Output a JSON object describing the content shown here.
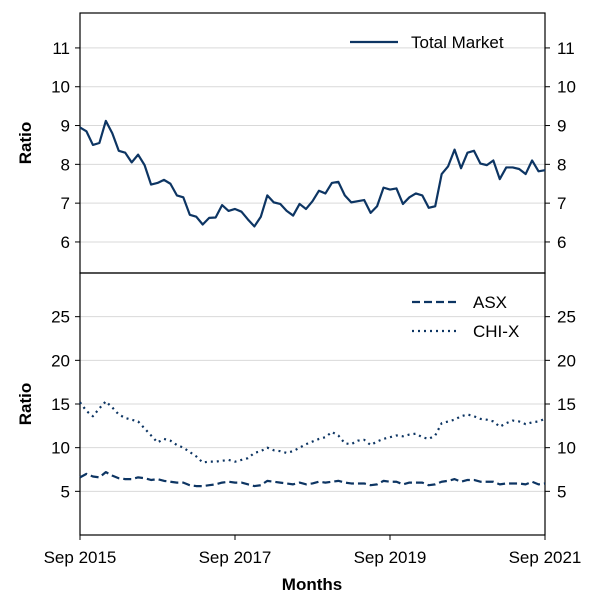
{
  "colors": {
    "series": "#0d3563",
    "grid": "#d9d9d9",
    "axis": "#000000"
  },
  "chart_data": [
    {
      "type": "line",
      "panel": "top",
      "xlabel": "",
      "ylabel": "Ratio",
      "ylim": [
        5.2,
        11.9
      ],
      "yticks": [
        6,
        7,
        8,
        9,
        10,
        11
      ],
      "grid": "horizontal",
      "legend": "top-right",
      "x": {
        "start": "Sep 2015",
        "end": "Sep 2021",
        "step": "month"
      },
      "series": [
        {
          "name": "Total Market",
          "style": "solid",
          "values": [
            8.95,
            8.85,
            8.5,
            8.55,
            9.12,
            8.8,
            8.35,
            8.3,
            8.05,
            8.25,
            7.98,
            7.48,
            7.52,
            7.6,
            7.5,
            7.2,
            7.15,
            6.7,
            6.65,
            6.45,
            6.62,
            6.63,
            6.95,
            6.8,
            6.85,
            6.78,
            6.58,
            6.4,
            6.65,
            7.2,
            7.02,
            6.98,
            6.8,
            6.68,
            6.98,
            6.85,
            7.05,
            7.32,
            7.25,
            7.52,
            7.55,
            7.2,
            7.02,
            7.05,
            7.08,
            6.75,
            6.92,
            7.4,
            7.35,
            7.38,
            6.98,
            7.15,
            7.25,
            7.2,
            6.88,
            6.92,
            7.75,
            7.95,
            8.38,
            7.9,
            8.3,
            8.35,
            8.02,
            7.98,
            8.1,
            7.62,
            7.92,
            7.92,
            7.88,
            7.75,
            8.1,
            7.82,
            7.85
          ]
        }
      ]
    },
    {
      "type": "line",
      "panel": "bottom",
      "xlabel": "Months",
      "ylabel": "Ratio",
      "ylim": [
        0,
        30
      ],
      "yticks": [
        5,
        10,
        15,
        20,
        25
      ],
      "xticks": [
        "Sep 2015",
        "Sep 2017",
        "Sep 2019",
        "Sep 2021"
      ],
      "grid": "horizontal",
      "legend": "top-right",
      "x": {
        "start": "Sep 2015",
        "end": "Sep 2021",
        "step": "month"
      },
      "series": [
        {
          "name": "ASX",
          "style": "dashed",
          "values": [
            6.6,
            7.0,
            6.7,
            6.6,
            7.2,
            6.8,
            6.5,
            6.4,
            6.4,
            6.6,
            6.5,
            6.3,
            6.4,
            6.2,
            6.1,
            6.0,
            6.0,
            5.7,
            5.6,
            5.6,
            5.7,
            5.8,
            6.0,
            6.1,
            6.0,
            6.0,
            5.8,
            5.6,
            5.7,
            6.2,
            6.1,
            6.0,
            5.9,
            5.8,
            6.0,
            5.8,
            5.9,
            6.1,
            6.0,
            6.1,
            6.2,
            6.0,
            5.9,
            5.9,
            5.9,
            5.7,
            5.8,
            6.2,
            6.1,
            6.1,
            5.8,
            6.0,
            6.0,
            6.0,
            5.7,
            5.8,
            6.1,
            6.2,
            6.4,
            6.1,
            6.3,
            6.3,
            6.1,
            6.1,
            6.1,
            5.8,
            5.9,
            5.9,
            5.9,
            5.8,
            6.1,
            5.8,
            5.9
          ]
        },
        {
          "name": "CHI-X",
          "style": "dotted",
          "values": [
            15.2,
            14.2,
            13.6,
            14.5,
            15.3,
            14.6,
            13.8,
            13.4,
            13.2,
            13.0,
            12.2,
            11.4,
            10.6,
            11.0,
            10.8,
            10.3,
            10.0,
            9.5,
            9.0,
            8.3,
            8.4,
            8.4,
            8.5,
            8.6,
            8.4,
            8.6,
            8.8,
            9.4,
            9.6,
            10.0,
            9.7,
            9.6,
            9.4,
            9.6,
            10.0,
            10.4,
            10.7,
            11.0,
            11.2,
            11.8,
            11.4,
            10.5,
            10.4,
            10.8,
            10.9,
            10.3,
            10.7,
            11.0,
            11.2,
            11.4,
            11.3,
            11.5,
            11.6,
            11.2,
            11.0,
            11.4,
            12.8,
            13.0,
            13.2,
            13.6,
            13.8,
            13.6,
            13.3,
            13.2,
            13.0,
            12.4,
            12.8,
            13.1,
            13.0,
            12.7,
            12.9,
            13.0,
            13.3
          ]
        }
      ]
    }
  ]
}
